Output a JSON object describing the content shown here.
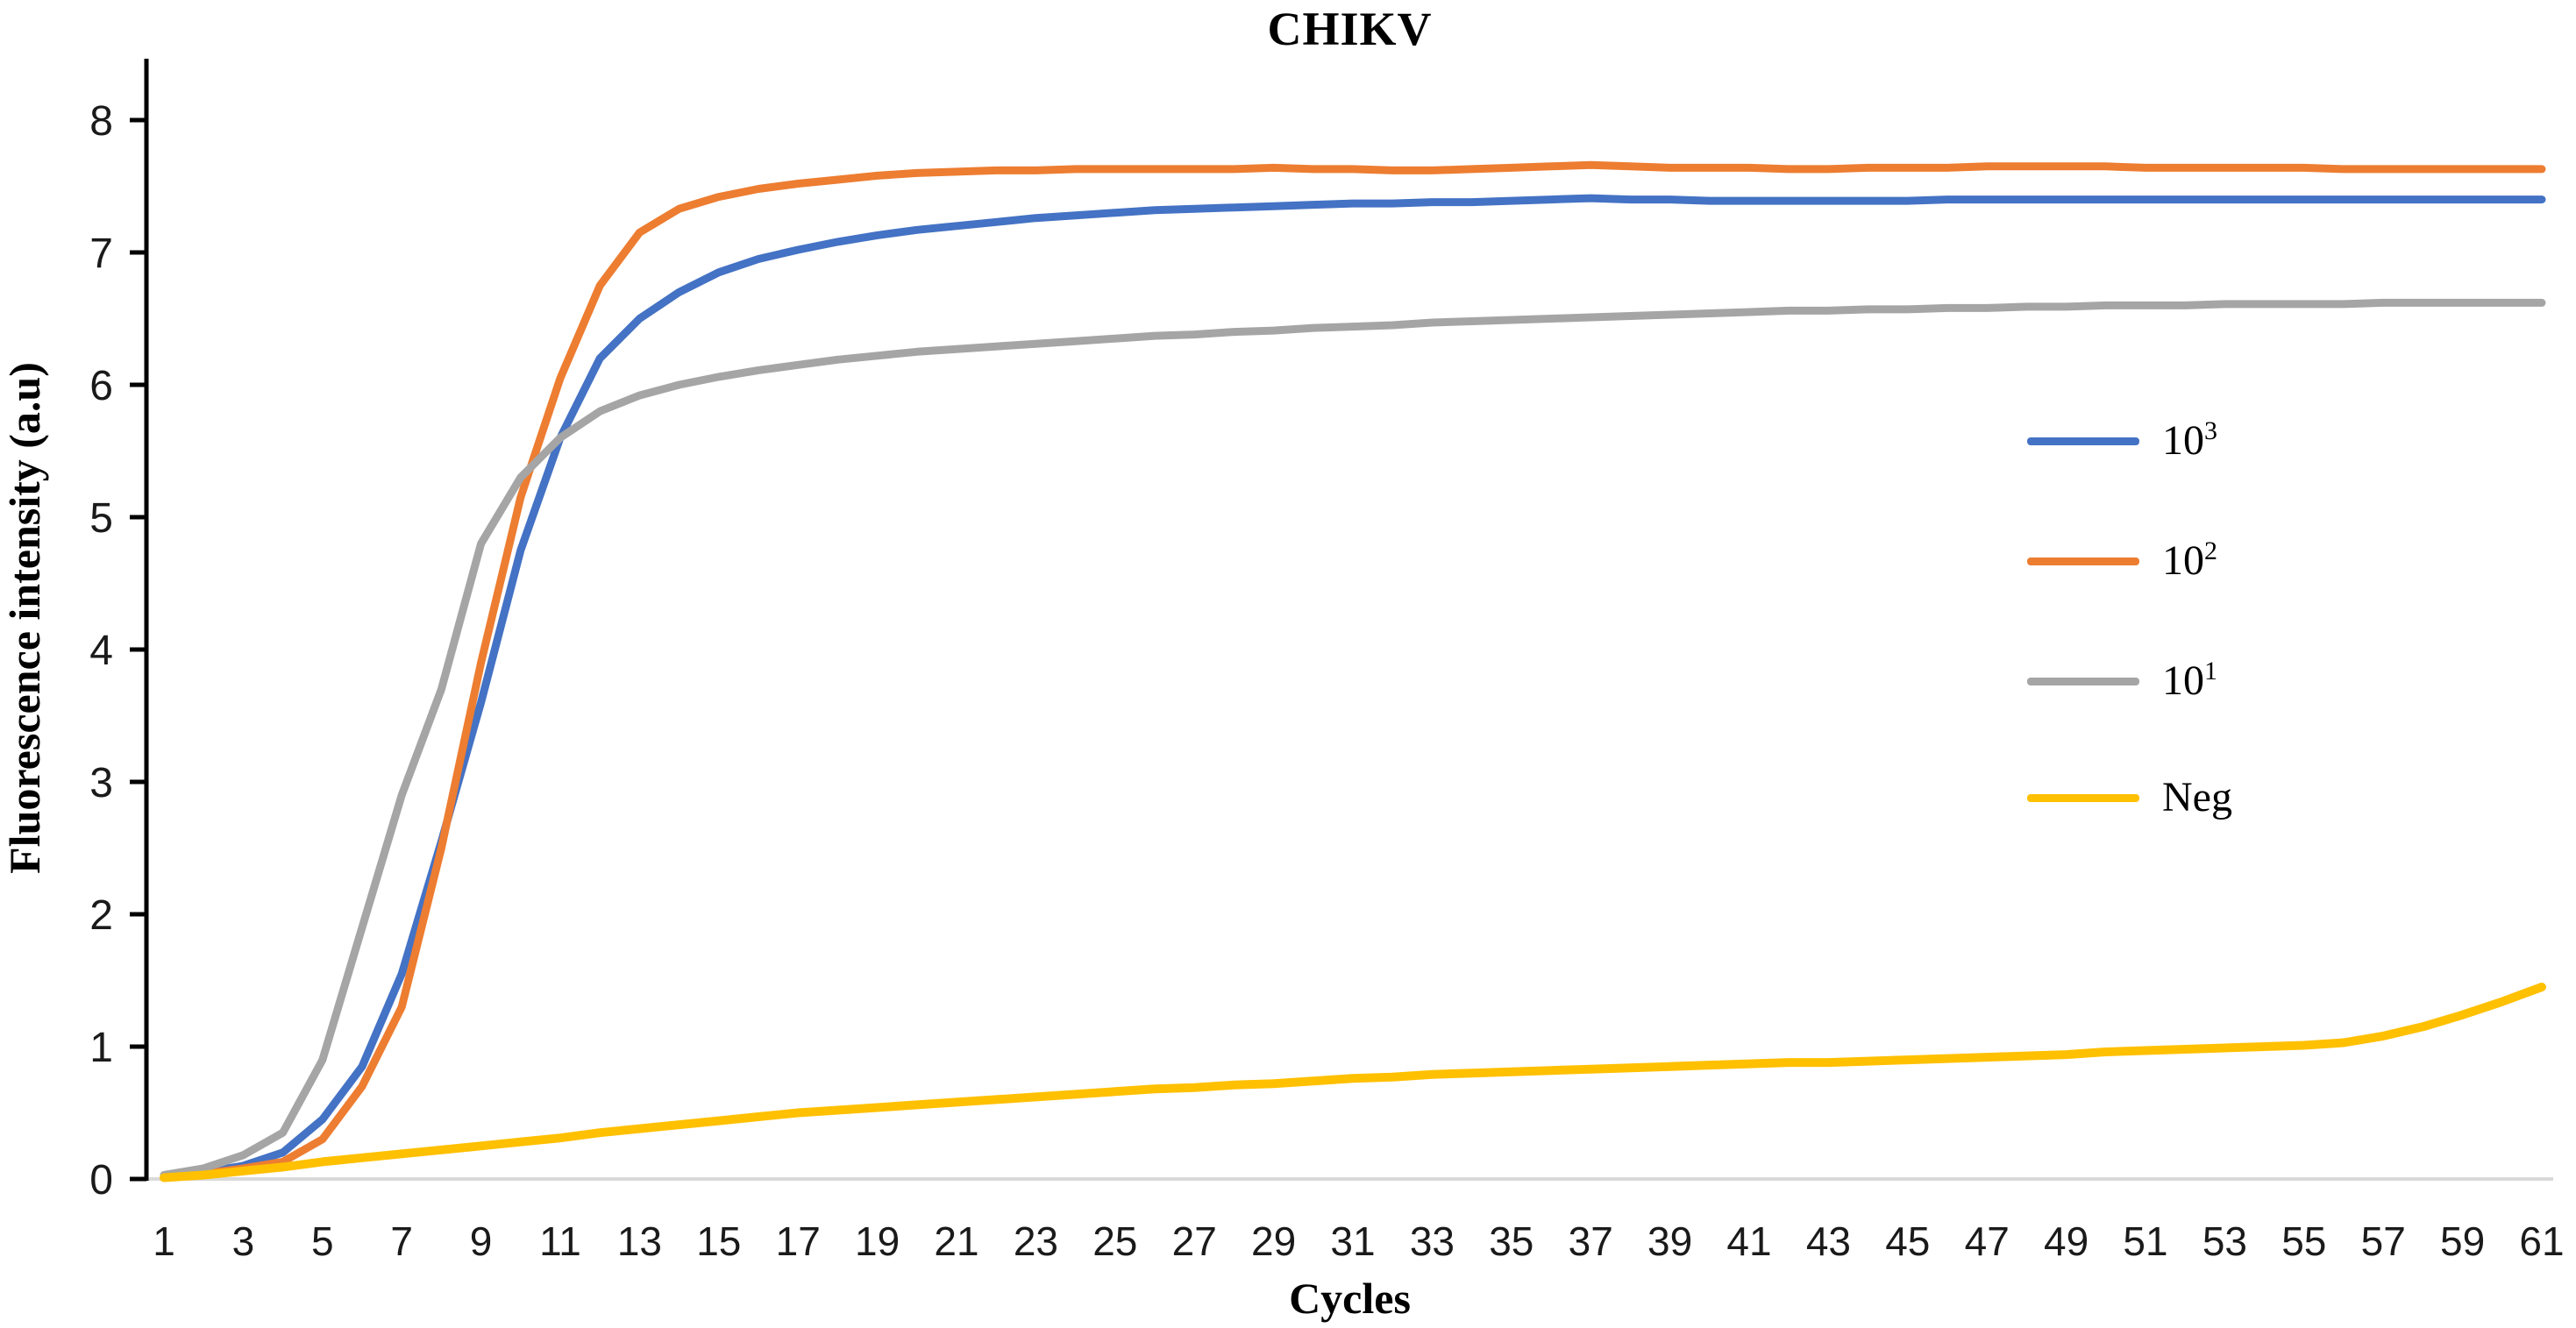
{
  "page": {
    "background": "#ffffff"
  },
  "colors": {
    "axis": "#000000",
    "tick_text": "#1a1a1a",
    "zero_gridline": "#d9d9d9",
    "series_blue": "#4472c4",
    "series_orange": "#ed7d31",
    "series_gray": "#a5a5a5",
    "series_yellow": "#ffc000"
  },
  "chart_data": {
    "type": "line",
    "title": "CHIKV",
    "xlabel": "Cycles",
    "ylabel": "Fluorescence intensity (a.u)",
    "xlim": [
      1,
      61
    ],
    "ylim": [
      0,
      8
    ],
    "grid": "horizontal zero-baseline only",
    "legend_position": "right-inside",
    "x_ticks": [
      1,
      3,
      5,
      7,
      9,
      11,
      13,
      15,
      17,
      19,
      21,
      23,
      25,
      27,
      29,
      31,
      33,
      35,
      37,
      39,
      41,
      43,
      45,
      47,
      49,
      51,
      53,
      55,
      57,
      59,
      61
    ],
    "y_ticks": [
      0,
      1,
      2,
      3,
      4,
      5,
      6,
      7,
      8
    ],
    "x": [
      1,
      2,
      3,
      4,
      5,
      6,
      7,
      8,
      9,
      10,
      11,
      12,
      13,
      14,
      15,
      16,
      17,
      18,
      19,
      20,
      21,
      22,
      23,
      24,
      25,
      26,
      27,
      28,
      29,
      30,
      31,
      32,
      33,
      34,
      35,
      36,
      37,
      38,
      39,
      40,
      41,
      42,
      43,
      44,
      45,
      46,
      47,
      48,
      49,
      50,
      51,
      52,
      53,
      54,
      55,
      56,
      57,
      58,
      59,
      60,
      61
    ],
    "series": [
      {
        "name": "10^3",
        "legend_base": "10",
        "legend_sup": "3",
        "color": "#4472c4",
        "stroke_width": 9,
        "values": [
          0.02,
          0.05,
          0.1,
          0.2,
          0.45,
          0.85,
          1.55,
          2.55,
          3.6,
          4.75,
          5.6,
          6.2,
          6.5,
          6.7,
          6.85,
          6.95,
          7.02,
          7.08,
          7.13,
          7.17,
          7.2,
          7.23,
          7.26,
          7.28,
          7.3,
          7.32,
          7.33,
          7.34,
          7.35,
          7.36,
          7.37,
          7.37,
          7.38,
          7.38,
          7.39,
          7.4,
          7.41,
          7.4,
          7.4,
          7.39,
          7.39,
          7.39,
          7.39,
          7.39,
          7.39,
          7.4,
          7.4,
          7.4,
          7.4,
          7.4,
          7.4,
          7.4,
          7.4,
          7.4,
          7.4,
          7.4,
          7.4,
          7.4,
          7.4,
          7.4,
          7.4
        ]
      },
      {
        "name": "10^2",
        "legend_base": "10",
        "legend_sup": "2",
        "color": "#ed7d31",
        "stroke_width": 9,
        "values": [
          0.02,
          0.04,
          0.08,
          0.13,
          0.3,
          0.7,
          1.3,
          2.5,
          3.9,
          5.15,
          6.05,
          6.75,
          7.15,
          7.33,
          7.42,
          7.48,
          7.52,
          7.55,
          7.58,
          7.6,
          7.61,
          7.62,
          7.62,
          7.63,
          7.63,
          7.63,
          7.63,
          7.63,
          7.64,
          7.63,
          7.63,
          7.62,
          7.62,
          7.63,
          7.64,
          7.65,
          7.66,
          7.65,
          7.64,
          7.64,
          7.64,
          7.63,
          7.63,
          7.64,
          7.64,
          7.64,
          7.65,
          7.65,
          7.65,
          7.65,
          7.64,
          7.64,
          7.64,
          7.64,
          7.64,
          7.63,
          7.63,
          7.63,
          7.63,
          7.63,
          7.63
        ]
      },
      {
        "name": "10^1",
        "legend_base": "10",
        "legend_sup": "1",
        "color": "#a5a5a5",
        "stroke_width": 9,
        "values": [
          0.03,
          0.08,
          0.18,
          0.35,
          0.9,
          1.9,
          2.9,
          3.7,
          4.8,
          5.3,
          5.6,
          5.8,
          5.92,
          6.0,
          6.06,
          6.11,
          6.15,
          6.19,
          6.22,
          6.25,
          6.27,
          6.29,
          6.31,
          6.33,
          6.35,
          6.37,
          6.38,
          6.4,
          6.41,
          6.43,
          6.44,
          6.45,
          6.47,
          6.48,
          6.49,
          6.5,
          6.51,
          6.52,
          6.53,
          6.54,
          6.55,
          6.56,
          6.56,
          6.57,
          6.57,
          6.58,
          6.58,
          6.59,
          6.59,
          6.6,
          6.6,
          6.6,
          6.61,
          6.61,
          6.61,
          6.61,
          6.62,
          6.62,
          6.62,
          6.62,
          6.62
        ]
      },
      {
        "name": "Neg",
        "legend_base": "Neg",
        "legend_sup": "",
        "color": "#ffc000",
        "stroke_width": 10,
        "values": [
          0.01,
          0.03,
          0.06,
          0.09,
          0.13,
          0.16,
          0.19,
          0.22,
          0.25,
          0.28,
          0.31,
          0.35,
          0.38,
          0.41,
          0.44,
          0.47,
          0.5,
          0.52,
          0.54,
          0.56,
          0.58,
          0.6,
          0.62,
          0.64,
          0.66,
          0.68,
          0.69,
          0.71,
          0.72,
          0.74,
          0.76,
          0.77,
          0.79,
          0.8,
          0.81,
          0.82,
          0.83,
          0.84,
          0.85,
          0.86,
          0.87,
          0.88,
          0.88,
          0.89,
          0.9,
          0.91,
          0.92,
          0.93,
          0.94,
          0.96,
          0.97,
          0.98,
          0.99,
          1.0,
          1.01,
          1.03,
          1.08,
          1.15,
          1.24,
          1.34,
          1.45
        ]
      }
    ]
  }
}
